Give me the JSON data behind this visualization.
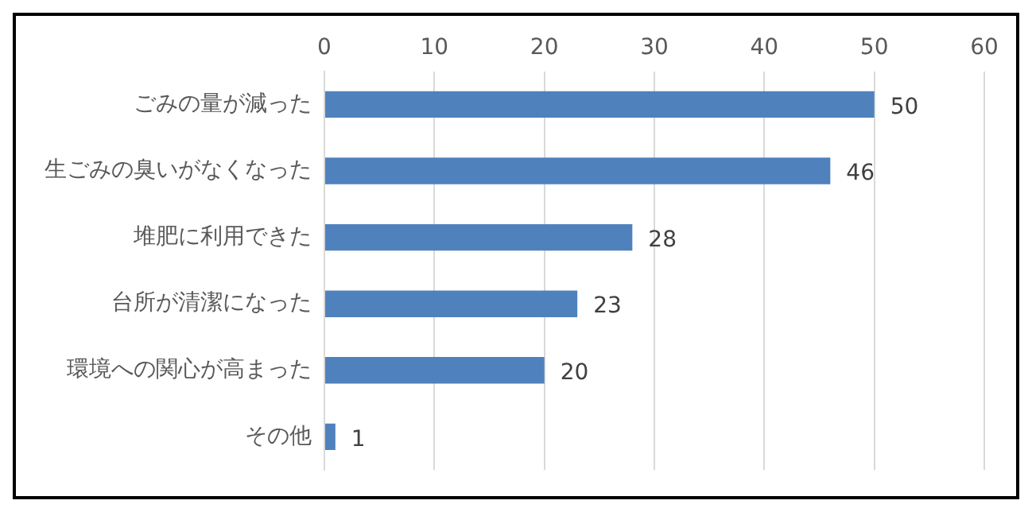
{
  "chart_data": {
    "type": "bar",
    "orientation": "horizontal",
    "categories": [
      "ごみの量が減った",
      "生ごみの臭いがなくなった",
      "堆肥に利用できた",
      "台所が清潔になった",
      "環境への関心が高まった",
      "その他"
    ],
    "values": [
      50,
      46,
      28,
      23,
      20,
      1
    ],
    "color": "#4f81bd",
    "xlim": [
      0,
      60
    ],
    "xticks": [
      0,
      10,
      20,
      30,
      40,
      50,
      60
    ],
    "grid": "x",
    "data_labels": true,
    "legend": false
  }
}
